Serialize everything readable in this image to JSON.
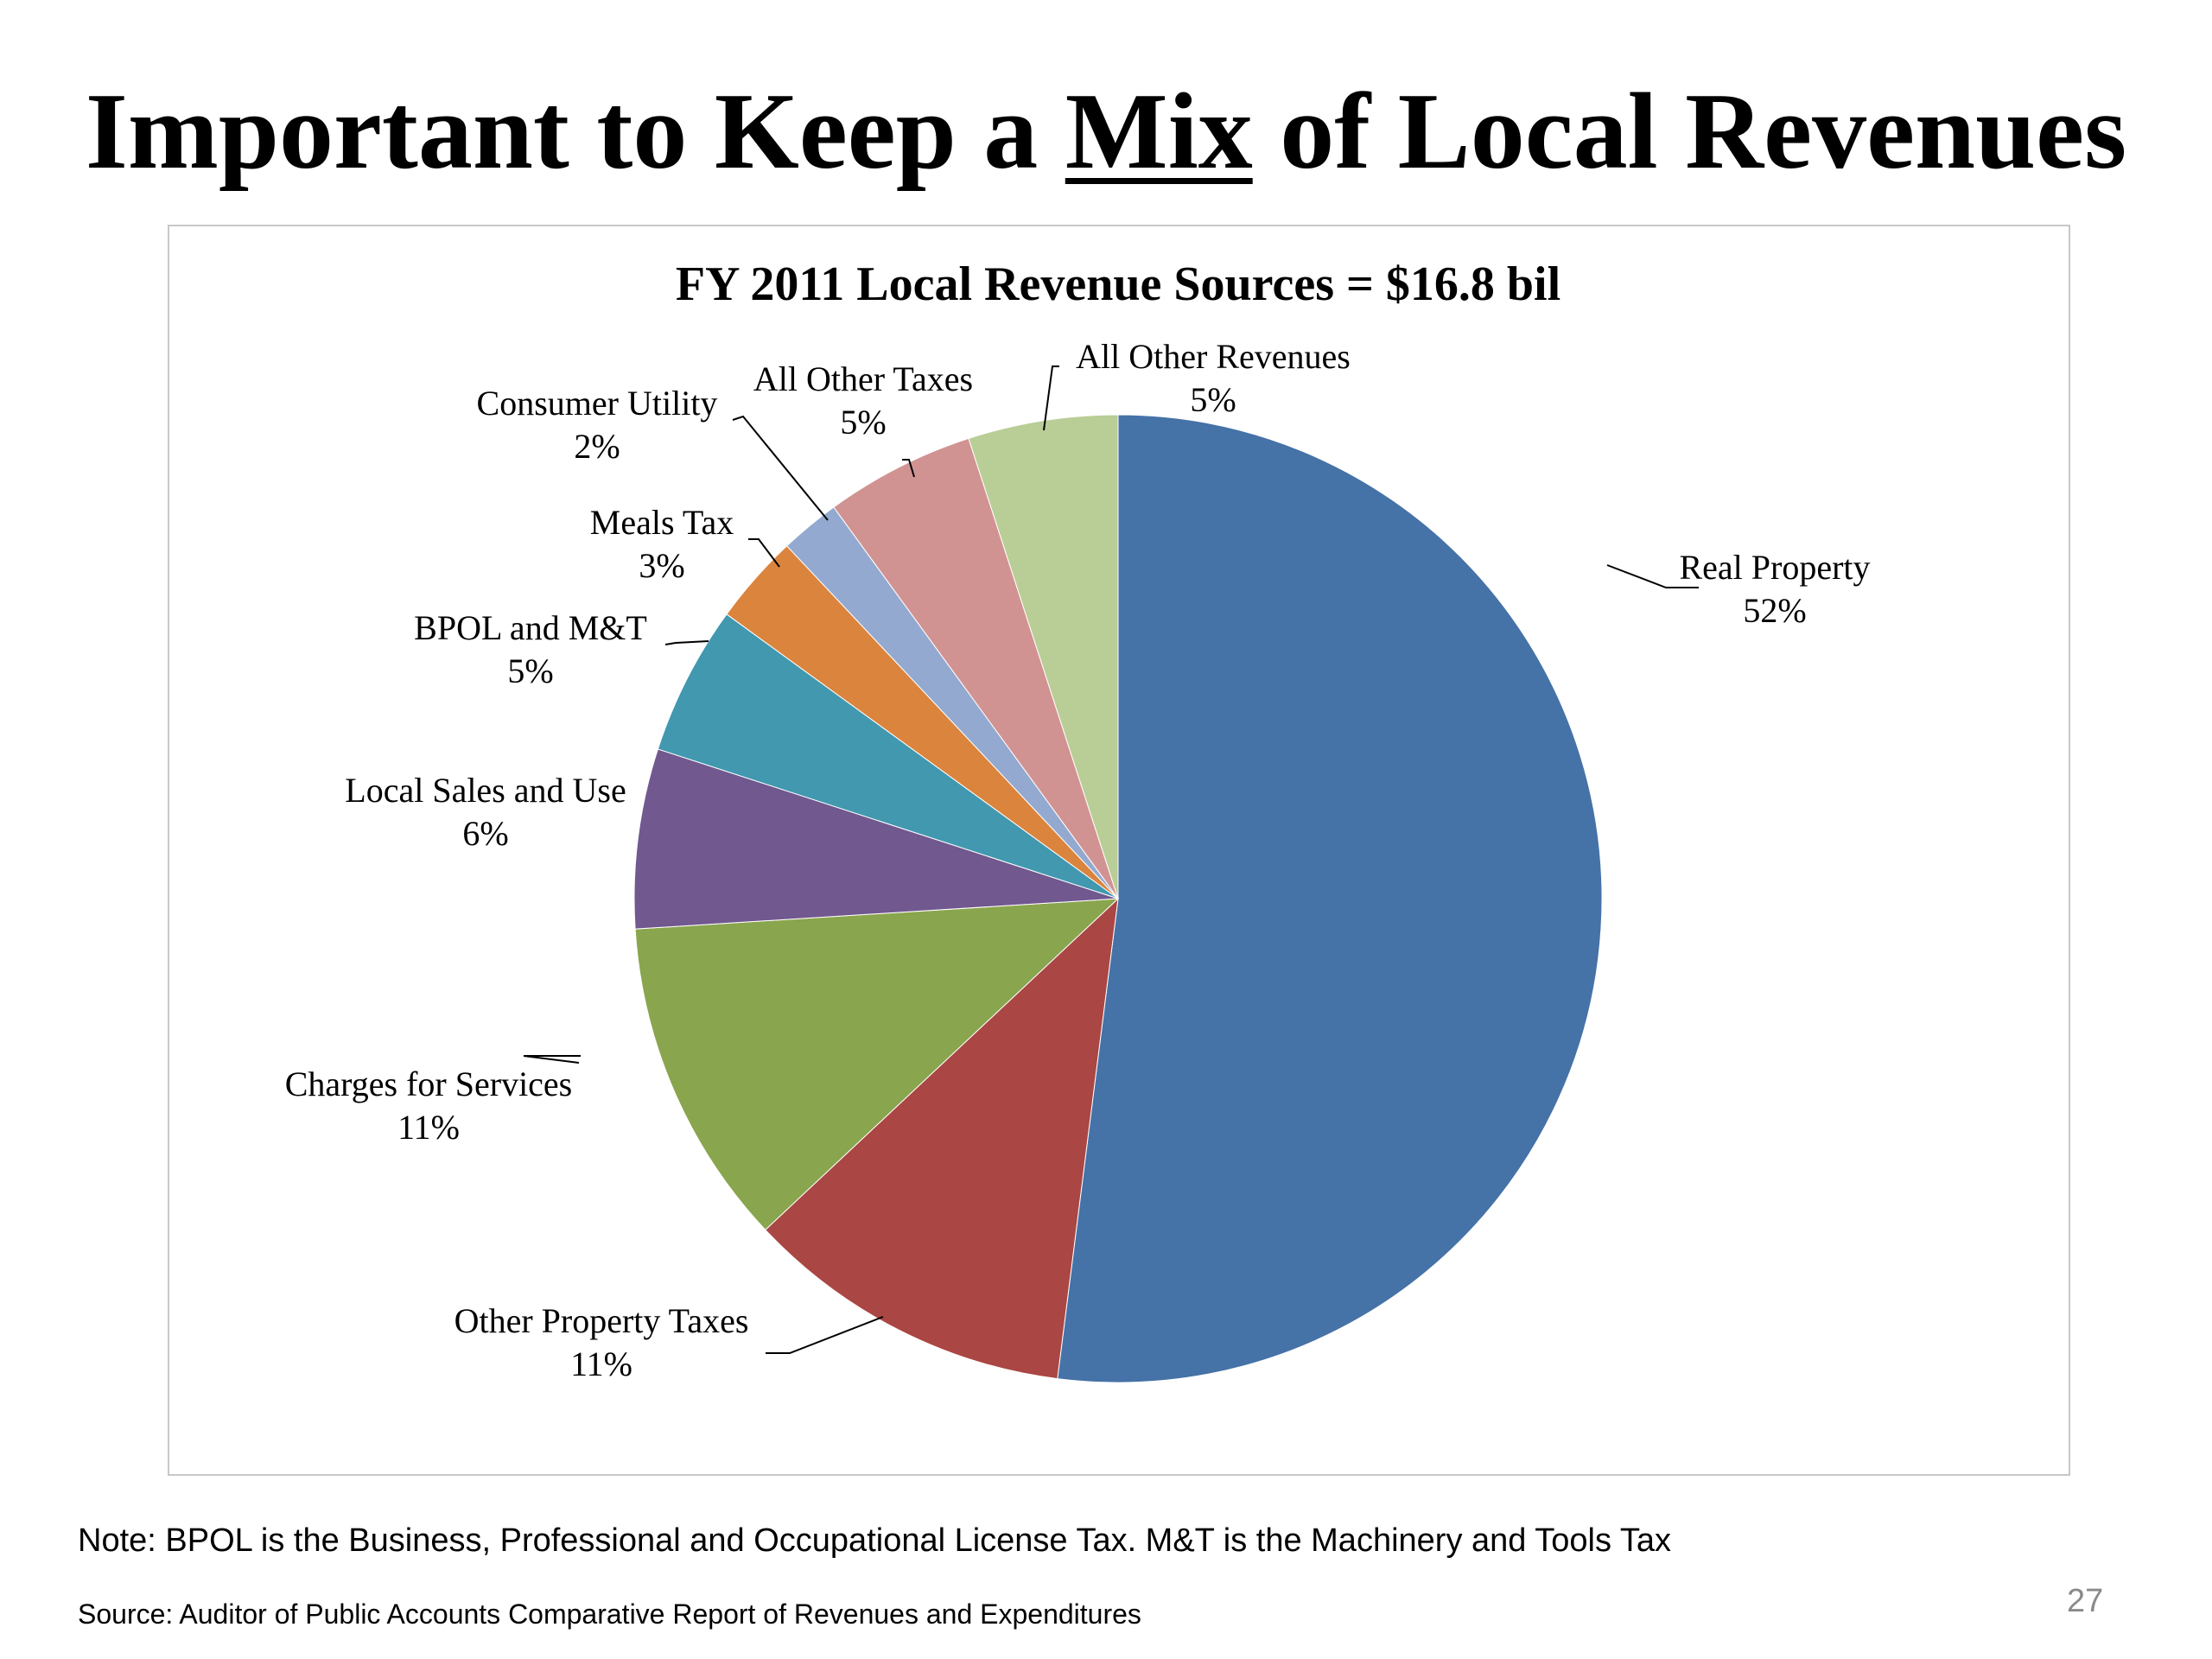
{
  "slide": {
    "title_part1": "Important to Keep a ",
    "title_mix": "Mix",
    "title_part2": " of Local Revenues",
    "note": "Note: BPOL is the Business, Professional and Occupational License Tax.  M&T is the Machinery and Tools Tax",
    "source": "Source:  Auditor of Public Accounts Comparative Report of Revenues and Expenditures",
    "page_number": "27"
  },
  "chart_data": {
    "type": "pie",
    "title": "FY 2011 Local Revenue  Sources = $16.8 bil",
    "slices": [
      {
        "label": "Real Property",
        "pct_label": "52%",
        "value": 52,
        "color": "#4572a7"
      },
      {
        "label": "Other Property Taxes",
        "pct_label": "11%",
        "value": 11,
        "color": "#aa4643"
      },
      {
        "label": "Charges for Services",
        "pct_label": "11%",
        "value": 11,
        "color": "#89a54e"
      },
      {
        "label": "Local Sales and Use",
        "pct_label": "6%",
        "value": 6,
        "color": "#71588f"
      },
      {
        "label": "BPOL and M&T",
        "pct_label": "5%",
        "value": 5,
        "color": "#4198af"
      },
      {
        "label": "Meals Tax",
        "pct_label": "3%",
        "value": 3,
        "color": "#db843d"
      },
      {
        "label": "Consumer Utility",
        "pct_label": "2%",
        "value": 2,
        "color": "#93a9cf"
      },
      {
        "label": "All Other Taxes",
        "pct_label": "5%",
        "value": 5,
        "color": "#d19392"
      },
      {
        "label": "All Other Revenues",
        "pct_label": "5%",
        "value": 5,
        "color": "#b9cd96"
      }
    ],
    "start_angle": "12 o'clock",
    "direction": "clockwise",
    "legend": "none"
  }
}
